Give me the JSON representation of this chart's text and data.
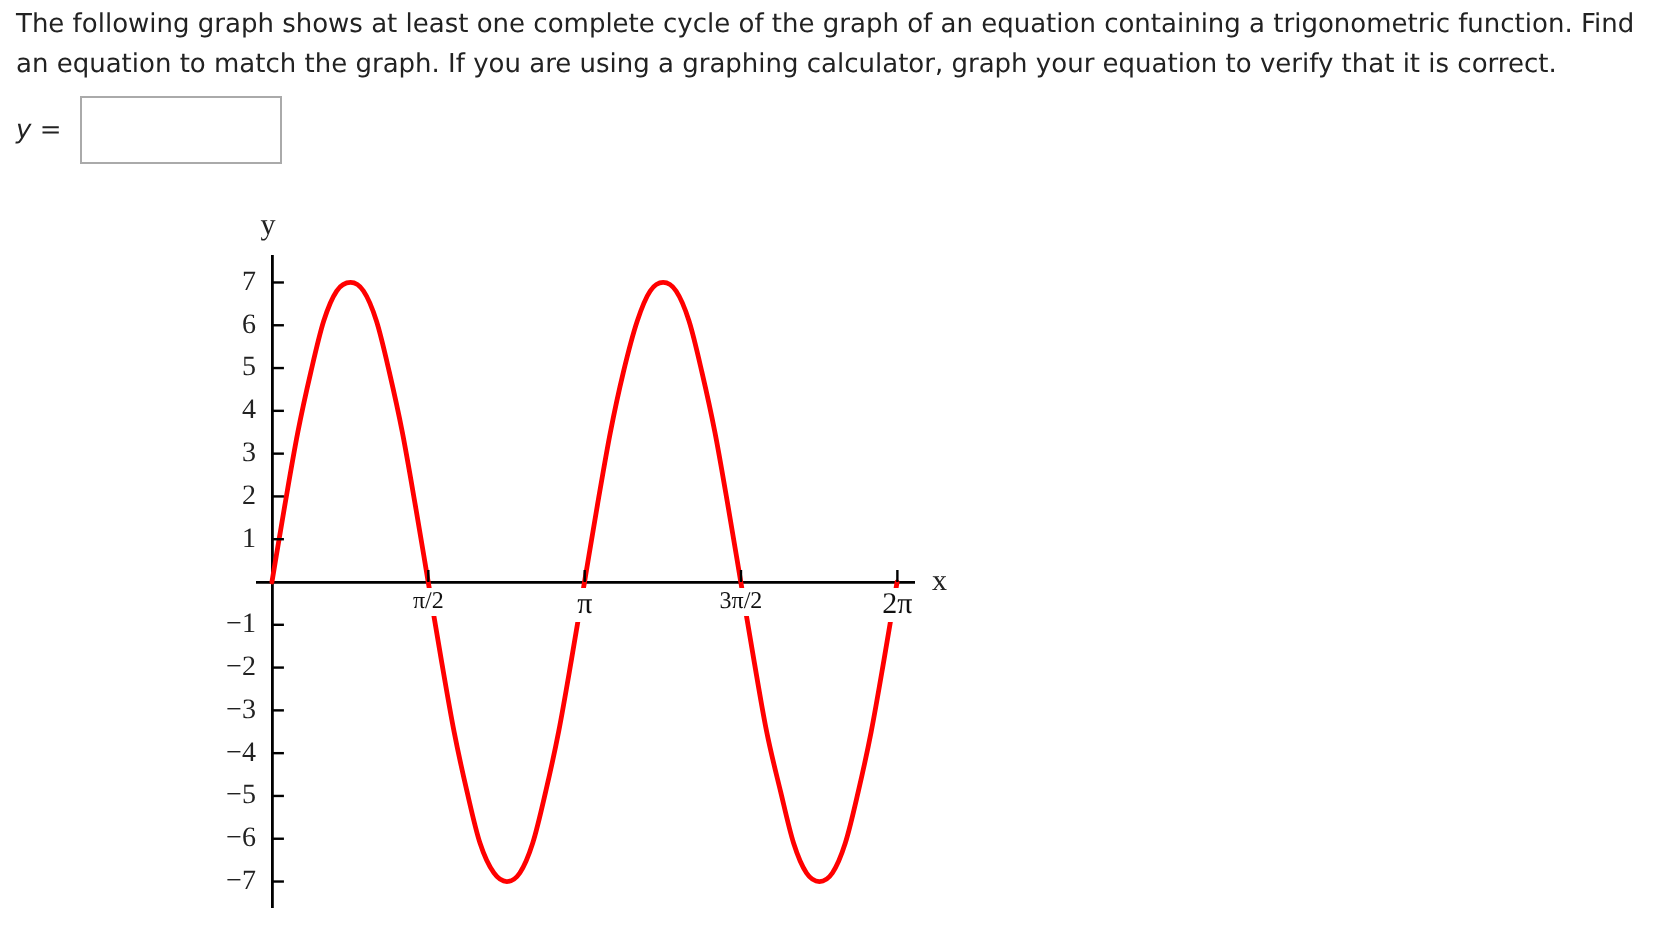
{
  "chart_data": {
    "type": "line",
    "title": "The following graph shows at least one complete cycle of the graph of an equation containing a trigonometric function. Find an equation to match the graph. If you are using a graphing calculator, graph your equation to verify that it is correct.",
    "annotations": [
      "y ="
    ],
    "xlabel": "x",
    "ylabel": "y",
    "x": [
      0,
      0.13,
      0.26,
      0.39,
      0.52,
      0.65,
      0.79,
      0.92,
      1.05,
      1.18,
      1.31,
      1.44,
      1.57,
      1.7,
      1.83,
      1.96,
      2.09,
      2.23,
      2.36,
      2.49,
      2.62,
      2.75,
      2.88,
      3.01,
      3.14,
      3.27,
      3.4,
      3.53,
      3.67,
      3.8,
      3.93,
      4.06,
      4.19,
      4.32,
      4.45,
      4.58,
      4.71,
      4.84,
      4.97,
      5.11,
      5.24,
      5.37,
      5.5,
      5.63,
      5.76,
      5.89,
      6.02,
      6.15,
      6.28
    ],
    "series": [
      {
        "color": "#ff0000",
        "values": [
          0,
          1.8,
          3.5,
          4.9,
          6.1,
          6.8,
          7,
          6.8,
          6.1,
          4.9,
          3.5,
          1.8,
          0,
          -1.8,
          -3.5,
          -4.9,
          -6.1,
          -6.8,
          -7,
          -6.8,
          -6.1,
          -4.9,
          -3.5,
          -1.8,
          0,
          1.8,
          3.5,
          4.9,
          6.1,
          6.8,
          7,
          6.8,
          6.1,
          4.9,
          3.5,
          1.8,
          0,
          -1.8,
          -3.5,
          -4.9,
          -6.1,
          -6.8,
          -7,
          -6.8,
          -6.1,
          -4.9,
          -3.5,
          -1.8,
          0
        ]
      }
    ],
    "xlim": [
      -0.15,
      6.45
    ],
    "ylim": [
      -7.6,
      7.6
    ],
    "xticks": [
      {
        "value": 1.571,
        "label": "π/2"
      },
      {
        "value": 3.142,
        "label": "π"
      },
      {
        "value": 4.712,
        "label": "3π/2"
      },
      {
        "value": 6.283,
        "label": "2π"
      }
    ],
    "yticks": [
      -7,
      -6,
      -5,
      -4,
      -3,
      -2,
      -1,
      1,
      2,
      3,
      4,
      5,
      6,
      7
    ],
    "grid": false,
    "legend": false,
    "marker": "none",
    "line_style": "solid"
  }
}
